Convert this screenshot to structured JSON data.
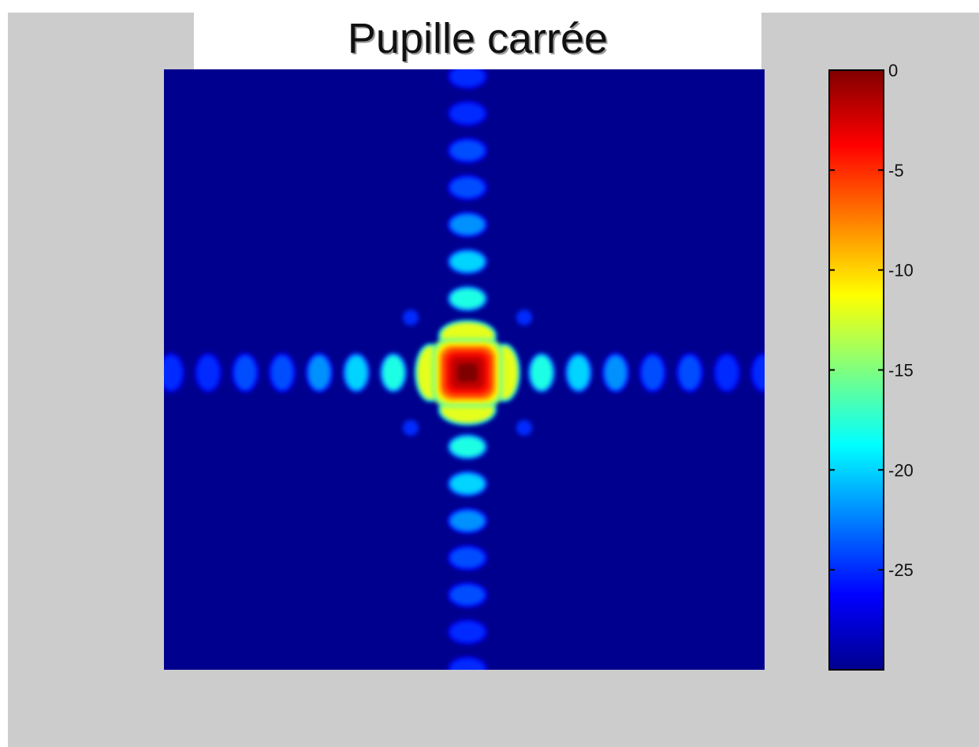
{
  "chart_data": {
    "type": "heatmap",
    "title": "Pupille carrée",
    "colormap": "jet",
    "colorbar": {
      "range": [
        -30,
        0
      ],
      "ticks": [
        0,
        -5,
        -10,
        -15,
        -20,
        -25
      ],
      "tick_labels": [
        "0",
        "-5",
        "-10",
        "-15",
        "-20",
        "-25"
      ]
    },
    "horizontal_lobes": [
      {
        "offset": -8,
        "value": -25
      },
      {
        "offset": -7,
        "value": -25
      },
      {
        "offset": -6,
        "value": -24
      },
      {
        "offset": -5,
        "value": -24
      },
      {
        "offset": -4,
        "value": -22
      },
      {
        "offset": -3,
        "value": -20
      },
      {
        "offset": -2,
        "value": -18
      },
      {
        "offset": -1,
        "value": -12
      },
      {
        "offset": 0,
        "value": 0
      },
      {
        "offset": 1,
        "value": -12
      },
      {
        "offset": 2,
        "value": -18
      },
      {
        "offset": 3,
        "value": -20
      },
      {
        "offset": 4,
        "value": -22
      },
      {
        "offset": 5,
        "value": -24
      },
      {
        "offset": 6,
        "value": -24
      },
      {
        "offset": 7,
        "value": -25
      },
      {
        "offset": 8,
        "value": -25
      }
    ],
    "vertical_lobes": [
      {
        "offset": -8,
        "value": -25
      },
      {
        "offset": -7,
        "value": -25
      },
      {
        "offset": -6,
        "value": -24
      },
      {
        "offset": -5,
        "value": -24
      },
      {
        "offset": -4,
        "value": -22
      },
      {
        "offset": -3,
        "value": -20
      },
      {
        "offset": -2,
        "value": -18
      },
      {
        "offset": -1,
        "value": -12
      },
      {
        "offset": 0,
        "value": 0
      },
      {
        "offset": 1,
        "value": -12
      },
      {
        "offset": 2,
        "value": -18
      },
      {
        "offset": 3,
        "value": -20
      },
      {
        "offset": 4,
        "value": -22
      },
      {
        "offset": 5,
        "value": -24
      },
      {
        "offset": 6,
        "value": -24
      },
      {
        "offset": 7,
        "value": -25
      },
      {
        "offset": 8,
        "value": -25
      }
    ],
    "diagonal_lobes": [
      {
        "dx": -1,
        "dy": -1,
        "value": -25
      },
      {
        "dx": 1,
        "dy": -1,
        "value": -25
      },
      {
        "dx": -1,
        "dy": 1,
        "value": -25
      },
      {
        "dx": 1,
        "dy": 1,
        "value": -25
      }
    ],
    "grid": false
  }
}
